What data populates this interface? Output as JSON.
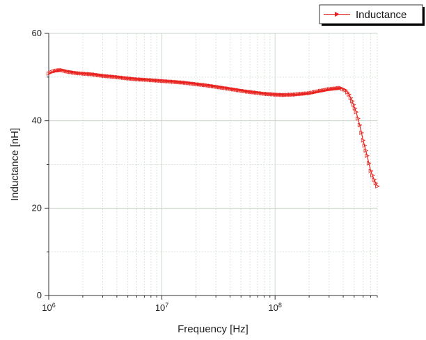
{
  "chart_data": {
    "type": "line",
    "x_scale": "log",
    "xlabel": "Frequency [Hz]",
    "ylabel": "Inductance [nH]",
    "xlim": [
      1000000,
      800000000
    ],
    "ylim": [
      0,
      60
    ],
    "x_tick_labels": [
      {
        "value": 1000000,
        "base": "10",
        "exp": "6"
      },
      {
        "value": 10000000,
        "base": "10",
        "exp": "7"
      },
      {
        "value": 100000000,
        "base": "10",
        "exp": "8"
      }
    ],
    "y_ticks": [
      0,
      20,
      40,
      60
    ],
    "y_tick_labels": [
      "0",
      "20",
      "40",
      "60"
    ],
    "grid": true,
    "legend_position": "top-right",
    "series": [
      {
        "name": "Inductance",
        "color": "#e8201c",
        "marker": "right-triangle",
        "points": [
          [
            1000000,
            50.8
          ],
          [
            1100000,
            51.3
          ],
          [
            1200000,
            51.5
          ],
          [
            1300000,
            51.6
          ],
          [
            1500000,
            51.2
          ],
          [
            1800000,
            50.9
          ],
          [
            2000000,
            50.8
          ],
          [
            2500000,
            50.6
          ],
          [
            3000000,
            50.3
          ],
          [
            4000000,
            50.0
          ],
          [
            5000000,
            49.7
          ],
          [
            6000000,
            49.5
          ],
          [
            7000000,
            49.4
          ],
          [
            8000000,
            49.3
          ],
          [
            10000000,
            49.1
          ],
          [
            13000000,
            48.9
          ],
          [
            16000000,
            48.7
          ],
          [
            20000000,
            48.4
          ],
          [
            25000000,
            48.1
          ],
          [
            30000000,
            47.8
          ],
          [
            40000000,
            47.3
          ],
          [
            50000000,
            46.9
          ],
          [
            60000000,
            46.6
          ],
          [
            70000000,
            46.4
          ],
          [
            80000000,
            46.2
          ],
          [
            100000000,
            46.0
          ],
          [
            120000000,
            45.9
          ],
          [
            150000000,
            46.0
          ],
          [
            200000000,
            46.3
          ],
          [
            250000000,
            46.8
          ],
          [
            300000000,
            47.2
          ],
          [
            350000000,
            47.4
          ],
          [
            380000000,
            47.5
          ],
          [
            420000000,
            47.0
          ],
          [
            450000000,
            46.0
          ],
          [
            480000000,
            44.5
          ],
          [
            520000000,
            42.0
          ],
          [
            560000000,
            39.0
          ],
          [
            600000000,
            35.5
          ],
          [
            650000000,
            32.0
          ],
          [
            700000000,
            28.5
          ],
          [
            750000000,
            26.5
          ],
          [
            800000000,
            25.0
          ]
        ]
      }
    ]
  }
}
